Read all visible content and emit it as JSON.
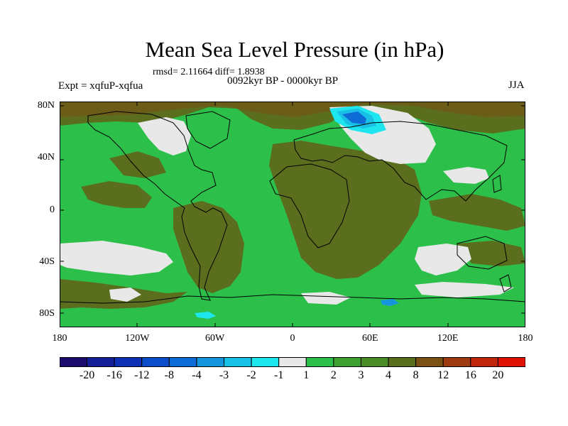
{
  "title": "Mean Sea Level Pressure (in hPa)",
  "stats_line": "rmsd= 2.11664 diff= 1.8938",
  "experiment": "Expt = xqfuP-xqfua",
  "period": "0092kyr BP - 0000kyr BP",
  "season": "JJA",
  "lat_ticks": [
    {
      "label": "80N",
      "value": 80
    },
    {
      "label": "40N",
      "value": 40
    },
    {
      "label": "0",
      "value": 0
    },
    {
      "label": "40S",
      "value": -40
    },
    {
      "label": "80S",
      "value": -80
    }
  ],
  "lon_ticks": [
    {
      "label": "180",
      "value": -180
    },
    {
      "label": "120W",
      "value": -120
    },
    {
      "label": "60W",
      "value": -60
    },
    {
      "label": "0",
      "value": 0
    },
    {
      "label": "60E",
      "value": 60
    },
    {
      "label": "120E",
      "value": 120
    },
    {
      "label": "180",
      "value": 180
    }
  ],
  "colorbar": {
    "levels": [
      "-20",
      "-16",
      "-12",
      "-8",
      "-4",
      "-3",
      "-2",
      "-1",
      "1",
      "2",
      "3",
      "4",
      "8",
      "12",
      "16",
      "20"
    ],
    "colors": [
      "#1a0a6b",
      "#141e96",
      "#0f2fb4",
      "#0b4cc8",
      "#0f6bd6",
      "#1596dc",
      "#19c0e6",
      "#1ee6ee",
      "#e8e8e8",
      "#2cc04a",
      "#3fa032",
      "#4a8c28",
      "#5a6e1e",
      "#7a5014",
      "#9e3a10",
      "#c0260c",
      "#e01206"
    ]
  },
  "palette": {
    "land_bg": "#3fa032",
    "positive_strong": "#5a6e1e",
    "near_zero": "#e8e8e8",
    "positive_weak": "#2cc04a",
    "negative": "#1596dc"
  }
}
